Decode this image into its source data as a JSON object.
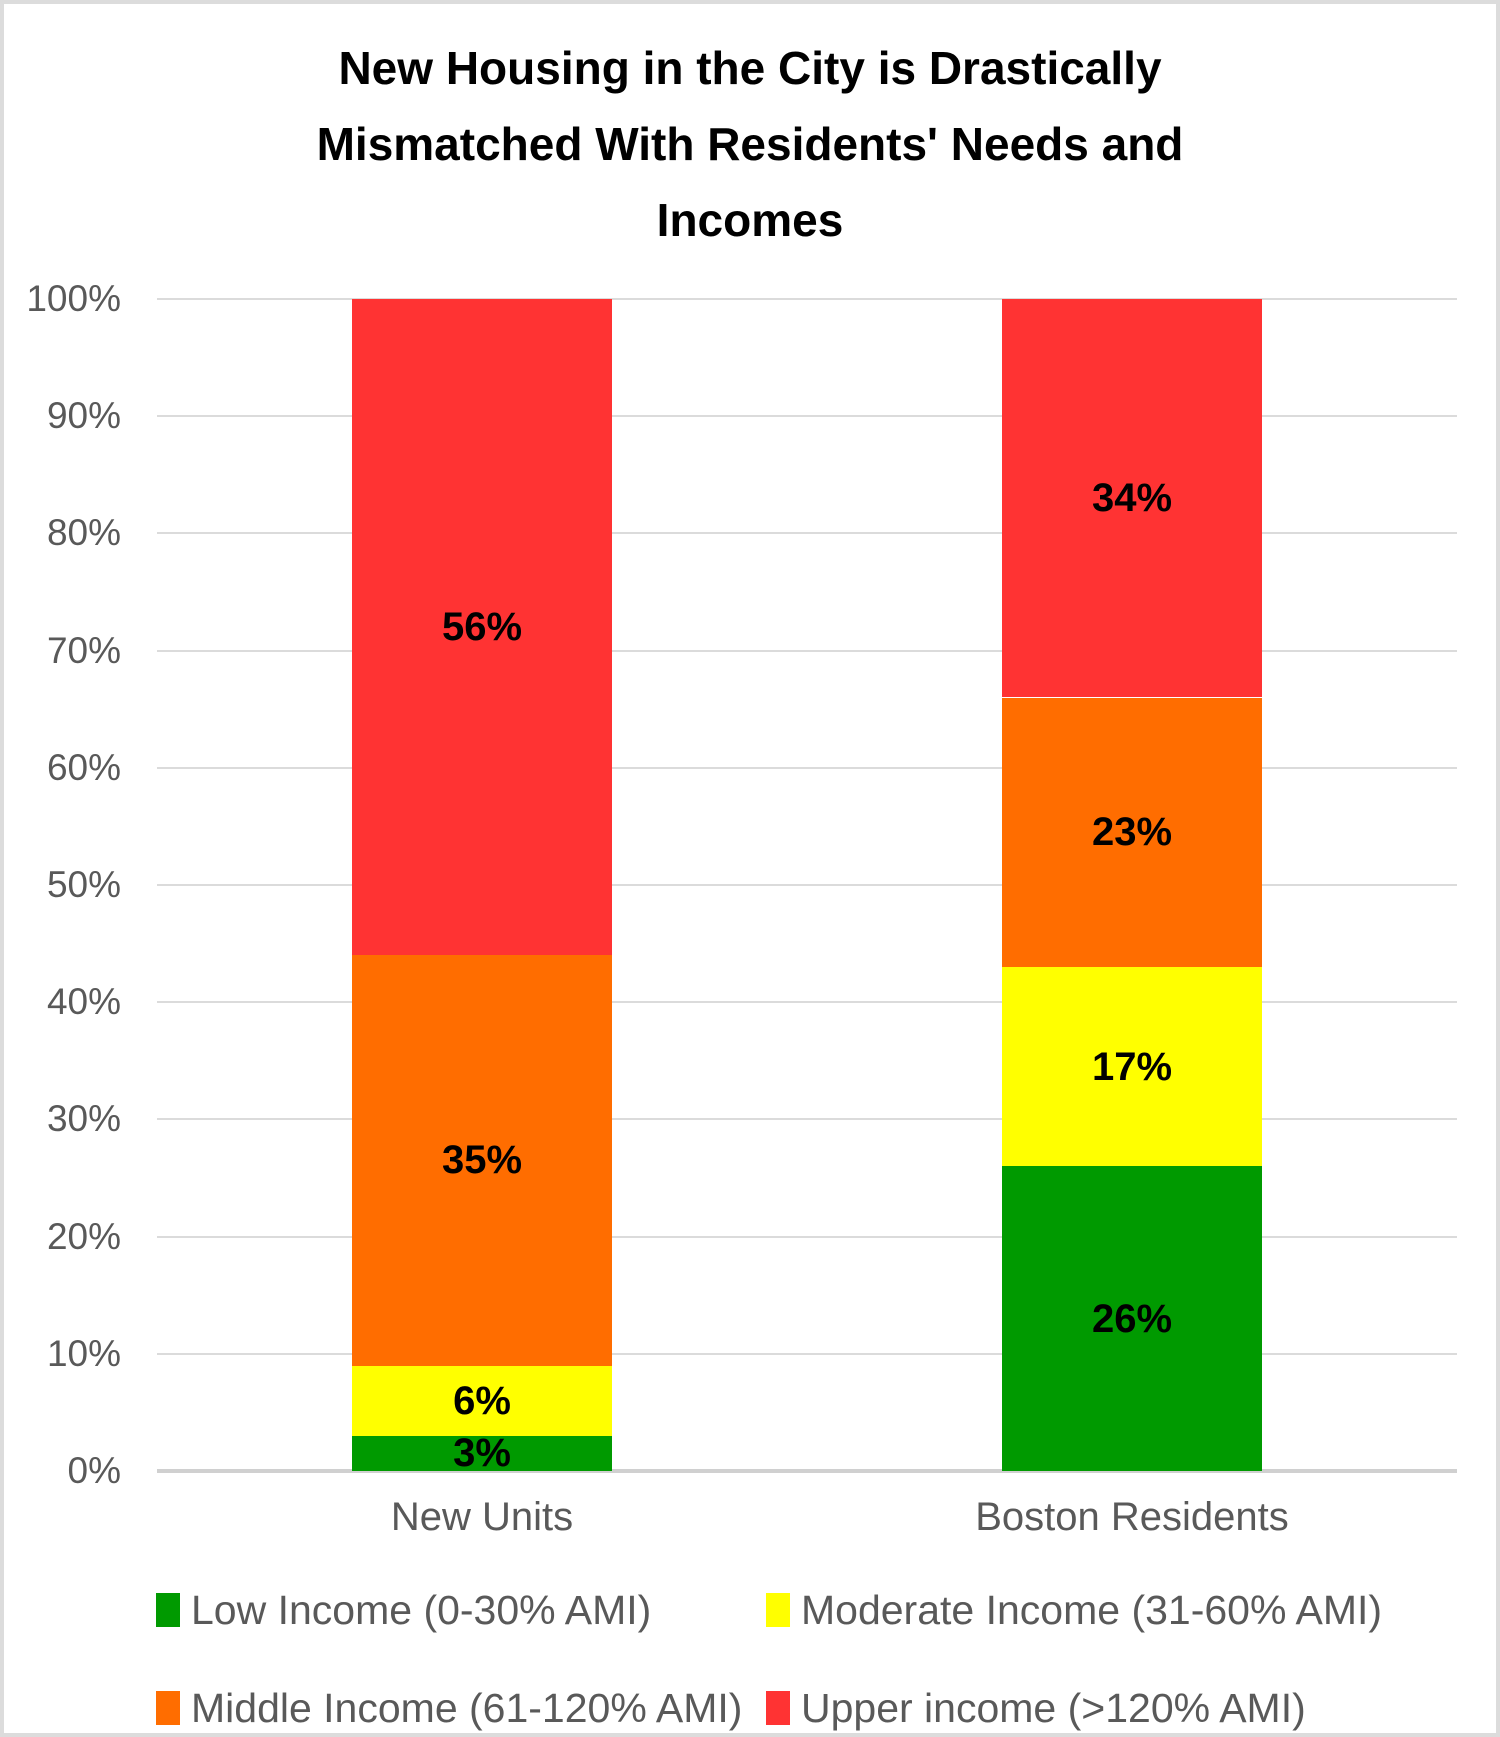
{
  "chart_data": {
    "type": "bar",
    "stacked": true,
    "title": "New Housing in the City is Drastically Mismatched With Residents' Needs and Incomes",
    "title_lines": [
      "New Housing in the City is Drastically",
      "Mismatched With Residents' Needs and",
      "Incomes"
    ],
    "categories": [
      "New Units",
      "Boston Residents"
    ],
    "series": [
      {
        "name": "Low Income (0-30% AMI)",
        "color": "#009A00",
        "values": [
          3,
          26
        ],
        "labels": [
          "3%",
          "26%"
        ]
      },
      {
        "name": "Moderate Income (31-60% AMI)",
        "color": "#FFFF00",
        "values": [
          6,
          17
        ],
        "labels": [
          "6%",
          "17%"
        ]
      },
      {
        "name": "Middle Income (61-120% AMI)",
        "color": "#FF6D00",
        "values": [
          35,
          23
        ],
        "labels": [
          "35%",
          "23%"
        ]
      },
      {
        "name": "Upper income (>120% AMI)",
        "color": "#FF3333",
        "values": [
          56,
          34
        ],
        "labels": [
          "56%",
          "34%"
        ]
      }
    ],
    "y_ticks": [
      {
        "value": 0,
        "label": "0%"
      },
      {
        "value": 10,
        "label": "10%"
      },
      {
        "value": 20,
        "label": "20%"
      },
      {
        "value": 30,
        "label": "30%"
      },
      {
        "value": 40,
        "label": "40%"
      },
      {
        "value": 50,
        "label": "50%"
      },
      {
        "value": 60,
        "label": "60%"
      },
      {
        "value": 70,
        "label": "70%"
      },
      {
        "value": 80,
        "label": "80%"
      },
      {
        "value": 90,
        "label": "90%"
      },
      {
        "value": 100,
        "label": "100%"
      }
    ],
    "ylim": [
      0,
      100
    ],
    "grid": true,
    "legend_position": "bottom"
  }
}
